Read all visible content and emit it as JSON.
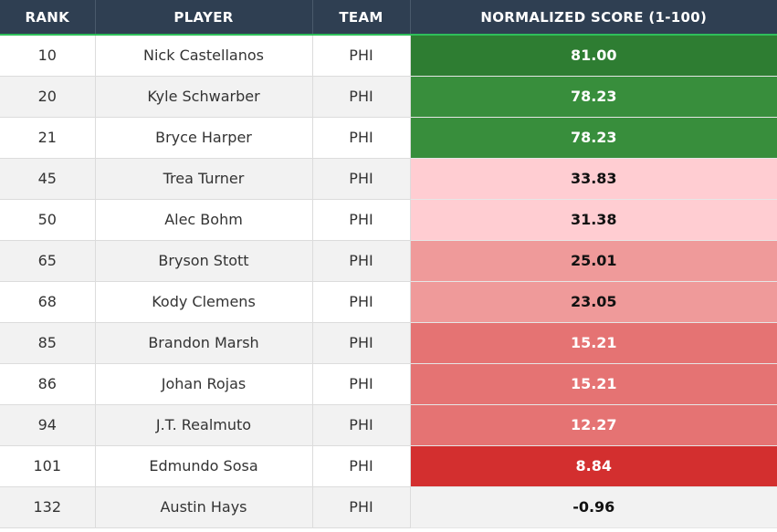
{
  "headers": {
    "rank": "RANK",
    "player": "PLAYER",
    "team": "TEAM",
    "score": "NORMALIZED SCORE (1-100)"
  },
  "colors": {
    "header_bg": "#2f3f52",
    "header_accent": "#2fbf5a",
    "score_dark_green": "#2e7d32",
    "score_green": "#388e3c",
    "score_pale_red": "#ffcdd2",
    "score_light_red": "#ef9a9a",
    "score_medium_red": "#e57373",
    "score_red": "#d32f2f",
    "score_neutral": "#f2f2f2"
  },
  "rows": [
    {
      "rank": "10",
      "player": "Nick Castellanos",
      "team": "PHI",
      "score": "81.00",
      "score_bg": "#2e7d32",
      "score_text": "light"
    },
    {
      "rank": "20",
      "player": "Kyle Schwarber",
      "team": "PHI",
      "score": "78.23",
      "score_bg": "#388e3c",
      "score_text": "light"
    },
    {
      "rank": "21",
      "player": "Bryce Harper",
      "team": "PHI",
      "score": "78.23",
      "score_bg": "#388e3c",
      "score_text": "light"
    },
    {
      "rank": "45",
      "player": "Trea Turner",
      "team": "PHI",
      "score": "33.83",
      "score_bg": "#ffcdd2",
      "score_text": "dark"
    },
    {
      "rank": "50",
      "player": "Alec Bohm",
      "team": "PHI",
      "score": "31.38",
      "score_bg": "#ffcdd2",
      "score_text": "dark"
    },
    {
      "rank": "65",
      "player": "Bryson Stott",
      "team": "PHI",
      "score": "25.01",
      "score_bg": "#ef9a9a",
      "score_text": "dark"
    },
    {
      "rank": "68",
      "player": "Kody Clemens",
      "team": "PHI",
      "score": "23.05",
      "score_bg": "#ef9a9a",
      "score_text": "dark"
    },
    {
      "rank": "85",
      "player": "Brandon Marsh",
      "team": "PHI",
      "score": "15.21",
      "score_bg": "#e57373",
      "score_text": "light"
    },
    {
      "rank": "86",
      "player": "Johan Rojas",
      "team": "PHI",
      "score": "15.21",
      "score_bg": "#e57373",
      "score_text": "light"
    },
    {
      "rank": "94",
      "player": "J.T. Realmuto",
      "team": "PHI",
      "score": "12.27",
      "score_bg": "#e57373",
      "score_text": "light"
    },
    {
      "rank": "101",
      "player": "Edmundo Sosa",
      "team": "PHI",
      "score": "8.84",
      "score_bg": "#d32f2f",
      "score_text": "light"
    },
    {
      "rank": "132",
      "player": "Austin Hays",
      "team": "PHI",
      "score": "-0.96",
      "score_bg": "#f2f2f2",
      "score_text": "dark"
    }
  ]
}
